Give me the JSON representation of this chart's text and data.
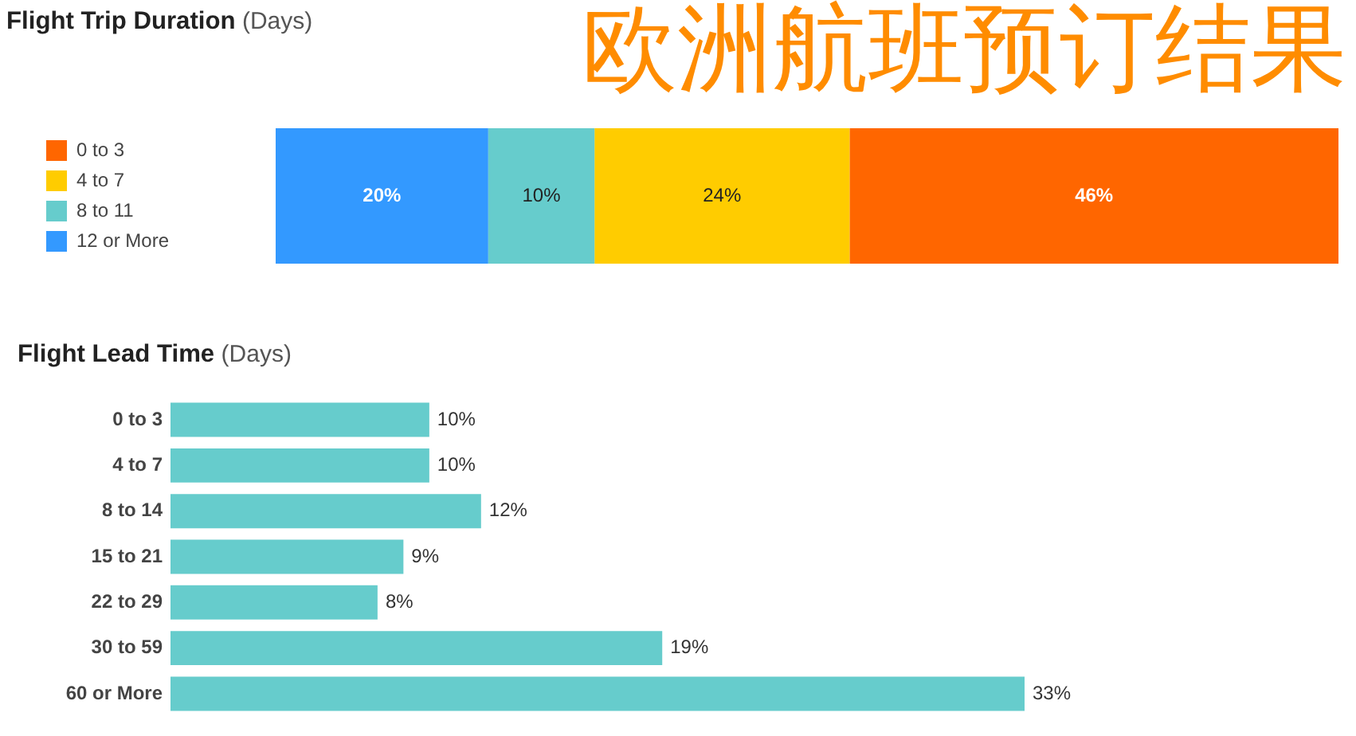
{
  "chart_data": [
    {
      "type": "bar",
      "title": "Flight Trip Duration",
      "subtitle": "(Days)",
      "annotations": [
        "欧洲航班预订结果"
      ],
      "orientation": "horizontal",
      "stacked": true,
      "categories": [
        null
      ],
      "series": [
        {
          "name": "12 or More",
          "color": "#3399ff",
          "values": [
            20
          ],
          "value_labels": [
            "20%"
          ]
        },
        {
          "name": "8 to 11",
          "color": "#66cccc",
          "values": [
            10
          ],
          "value_labels": [
            "10%"
          ]
        },
        {
          "name": "4 to 7",
          "color": "#ffcc00",
          "values": [
            24
          ],
          "value_labels": [
            "24%"
          ]
        },
        {
          "name": "0 to 3",
          "color": "#ff6600",
          "values": [
            46
          ],
          "value_labels": [
            "46%"
          ]
        }
      ],
      "legend": "left",
      "grid": false,
      "tick_labels": false
    },
    {
      "type": "bar",
      "title": "Flight Lead Time",
      "subtitle": "(Days)",
      "orientation": "horizontal",
      "categories": [
        "0 to 3",
        "4 to 7",
        "8 to 14",
        "15 to 21",
        "22 to 29",
        "30 to 59",
        "60 or More"
      ],
      "values": [
        10,
        10,
        12,
        9,
        8,
        19,
        33
      ],
      "value_labels": [
        "10%",
        "10%",
        "12%",
        "9%",
        "8%",
        "19%",
        "33%"
      ],
      "color": "#66cccc",
      "grid": false,
      "tick_labels": "y"
    }
  ]
}
